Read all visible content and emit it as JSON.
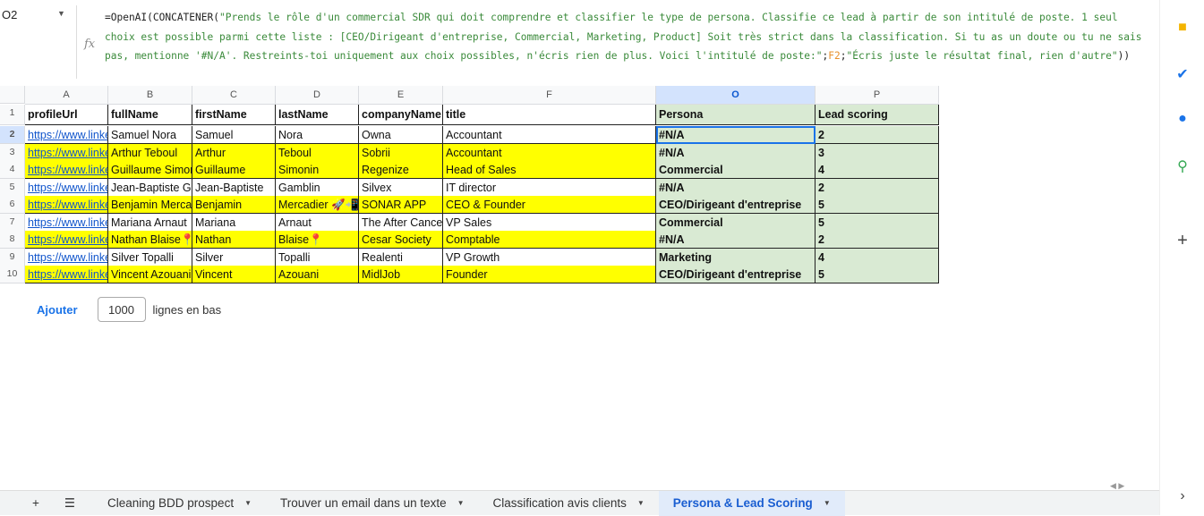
{
  "name_box": "O2",
  "formula": {
    "part1": "=OpenAI(CONCATENER(",
    "str1": "\"Prends le rôle d'un commercial SDR qui doit comprendre et classifier le type de persona. Classifie ce lead à partir de son intitulé de poste. 1 seul choix est possible parmi cette liste : [CEO/Dirigeant d'entreprise, Commercial, Marketing, Product] Soit très strict dans la classification. Si tu as un doute ou tu ne sais pas, mentionne '#N/A'. Restreints-toi uniquement aux choix possibles, n'écris rien de plus. Voici l'intitulé de poste:\"",
    "sep1": ";",
    "ref": "F2",
    "sep2": ";",
    "str2": "\"Écris juste le résultat final, rien d'autre\"",
    "end": "))"
  },
  "columns": [
    "A",
    "B",
    "C",
    "D",
    "E",
    "F",
    "O",
    "P"
  ],
  "headers": [
    "profileUrl",
    "fullName",
    "firstName",
    "lastName",
    "companyName",
    "title",
    "Persona",
    "Lead scoring"
  ],
  "rows": [
    {
      "n": "2",
      "y": false,
      "cells": [
        "https://www.linkedin",
        "Samuel Nora",
        "Samuel",
        "Nora",
        "Owna",
        "Accountant",
        "#N/A",
        "2"
      ]
    },
    {
      "n": "3",
      "y": true,
      "cells": [
        "https://www.linkedin",
        "Arthur Teboul",
        "Arthur",
        "Teboul",
        "Sobrii",
        "Accountant",
        "#N/A",
        "3"
      ]
    },
    {
      "n": "4",
      "y": true,
      "cells": [
        "https://www.linkedin",
        "Guillaume Simonin",
        "Guillaume",
        "Simonin",
        "Regenize",
        "Head of Sales",
        "Commercial",
        "4"
      ]
    },
    {
      "n": "5",
      "y": false,
      "cells": [
        "https://www.linkedin",
        "Jean-Baptiste Gamblin",
        "Jean-Baptiste",
        "Gamblin",
        "Silvex",
        "IT director",
        "#N/A",
        "2"
      ]
    },
    {
      "n": "6",
      "y": true,
      "cells": [
        "https://www.linkedin",
        "Benjamin Mercadier",
        "Benjamin",
        "Mercadier 🚀📲",
        "SONAR APP",
        "CEO & Founder",
        "CEO/Dirigeant d'entreprise",
        "5"
      ]
    },
    {
      "n": "7",
      "y": false,
      "cells": [
        "https://www.linkedin",
        "Mariana Arnaut",
        "Mariana",
        "Arnaut",
        "The After Cancer",
        "VP Sales",
        "Commercial",
        "5"
      ]
    },
    {
      "n": "8",
      "y": true,
      "cells": [
        "https://www.linkedin",
        "Nathan Blaise📍",
        "Nathan",
        "Blaise📍",
        "Cesar Society",
        "Comptable",
        "#N/A",
        "2"
      ]
    },
    {
      "n": "9",
      "y": false,
      "cells": [
        "https://www.linkedin",
        "Silver Topalli",
        "Silver",
        "Topalli",
        "Realenti",
        "VP Growth",
        "Marketing",
        "4"
      ]
    },
    {
      "n": "10",
      "y": true,
      "cells": [
        "https://www.linkedin",
        "Vincent Azouani",
        "Vincent",
        "Azouani",
        "MidlJob",
        "Founder",
        "CEO/Dirigeant d'entreprise",
        "5"
      ]
    }
  ],
  "add_rows": {
    "button": "Ajouter",
    "value": "1000",
    "suffix": "lignes en bas"
  },
  "sheet_tabs": [
    {
      "label": "Cleaning BDD prospect",
      "active": false
    },
    {
      "label": "Trouver un email dans un texte",
      "active": false
    },
    {
      "label": "Classification avis clients",
      "active": false
    },
    {
      "label": "Persona & Lead Scoring",
      "active": true
    }
  ],
  "colors": {
    "highlight": "#ffff00",
    "persona_fill": "#d9ead3",
    "active_tab": "#1a5ed1"
  }
}
